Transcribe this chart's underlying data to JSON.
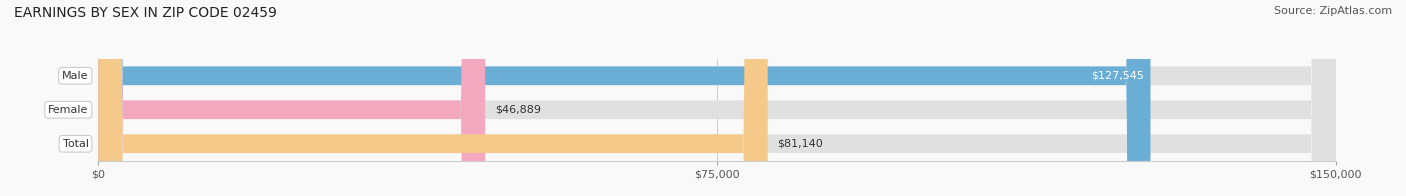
{
  "title": "EARNINGS BY SEX IN ZIP CODE 02459",
  "source": "Source: ZipAtlas.com",
  "categories": [
    "Male",
    "Female",
    "Total"
  ],
  "values": [
    127545,
    46889,
    81140
  ],
  "bar_colors": [
    "#6aaed6",
    "#f4a8c0",
    "#f5c98a"
  ],
  "bar_bg_color": "#e0e0e0",
  "label_text_color": "#333333",
  "value_labels": [
    "$127,545",
    "$46,889",
    "$81,140"
  ],
  "xlim": [
    0,
    150000
  ],
  "xticks": [
    0,
    75000,
    150000
  ],
  "xtick_labels": [
    "$0",
    "$75,000",
    "$150,000"
  ],
  "title_fontsize": 10,
  "source_fontsize": 8,
  "tick_fontsize": 8,
  "bar_label_fontsize": 8,
  "background_color": "#f9f9f9",
  "bar_height": 0.55
}
